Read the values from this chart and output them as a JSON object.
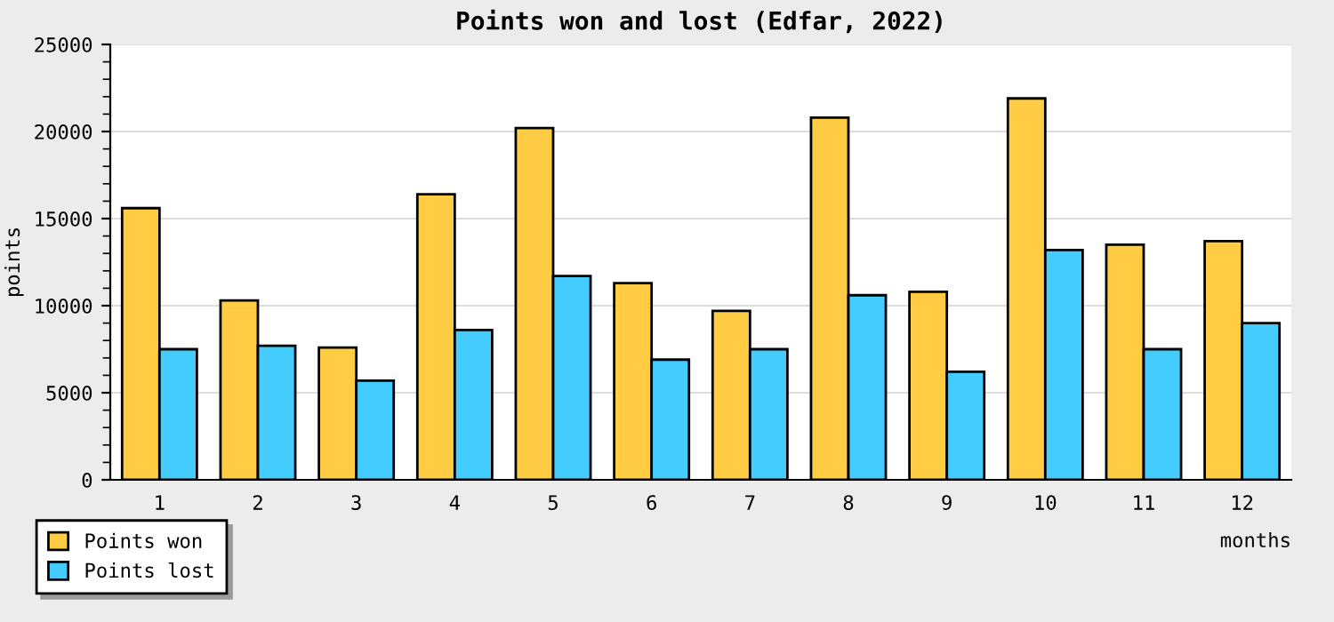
{
  "chart_data": {
    "type": "bar",
    "title": "Points won and lost (Edfar, 2022)",
    "xlabel": "months",
    "ylabel": "points",
    "categories": [
      "1",
      "2",
      "3",
      "4",
      "5",
      "6",
      "7",
      "8",
      "9",
      "10",
      "11",
      "12"
    ],
    "series": [
      {
        "name": "Points won",
        "color": "#ffcc44",
        "values": [
          15600,
          10300,
          7600,
          16400,
          20200,
          11300,
          9700,
          20800,
          10800,
          21900,
          13500,
          13700
        ]
      },
      {
        "name": "Points lost",
        "color": "#44ccff",
        "values": [
          7500,
          7700,
          5700,
          8600,
          11700,
          6900,
          7500,
          10600,
          6200,
          13200,
          7500,
          9000
        ]
      }
    ],
    "ylim": [
      0,
      25000
    ],
    "yticks": [
      0,
      5000,
      10000,
      15000,
      20000,
      25000
    ],
    "grid": "y",
    "legend": "bottom left"
  }
}
